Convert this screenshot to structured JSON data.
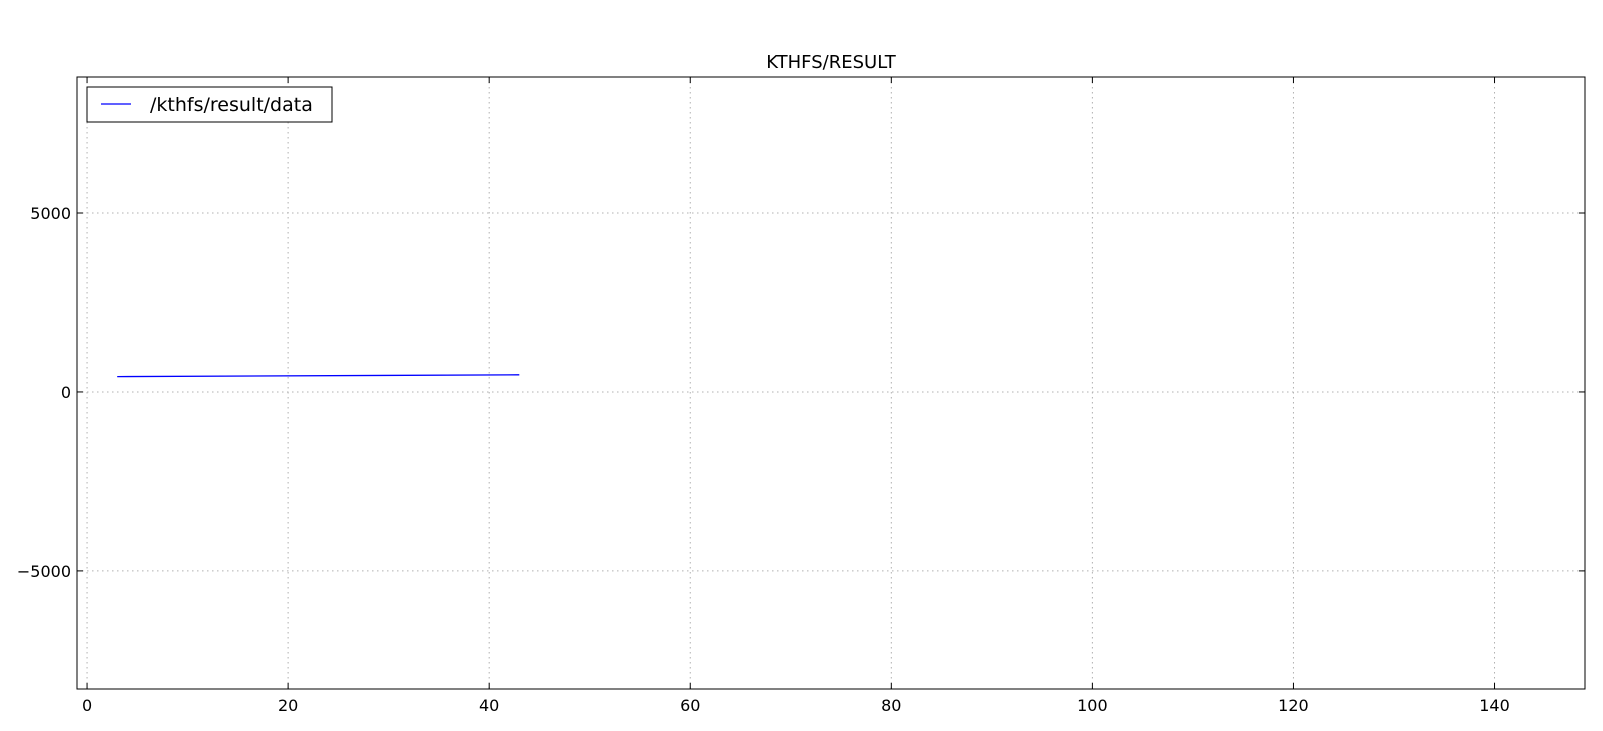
{
  "chart_data": {
    "type": "line",
    "title": "KTHFS/RESULT",
    "xlabel": "",
    "ylabel": "",
    "xlim": [
      -1,
      149
    ],
    "ylim": [
      -8300,
      8800
    ],
    "xticks": [
      0,
      20,
      40,
      60,
      80,
      100,
      120,
      140
    ],
    "yticks": [
      -5000,
      0,
      5000
    ],
    "ytick_labels": [
      "−5000",
      "0",
      "5000"
    ],
    "grid": true,
    "legend_position": "top-left",
    "series": [
      {
        "name": "/kthfs/result/data",
        "color": "#0000ff",
        "x": [
          3,
          43
        ],
        "y": [
          430,
          480
        ]
      }
    ]
  }
}
